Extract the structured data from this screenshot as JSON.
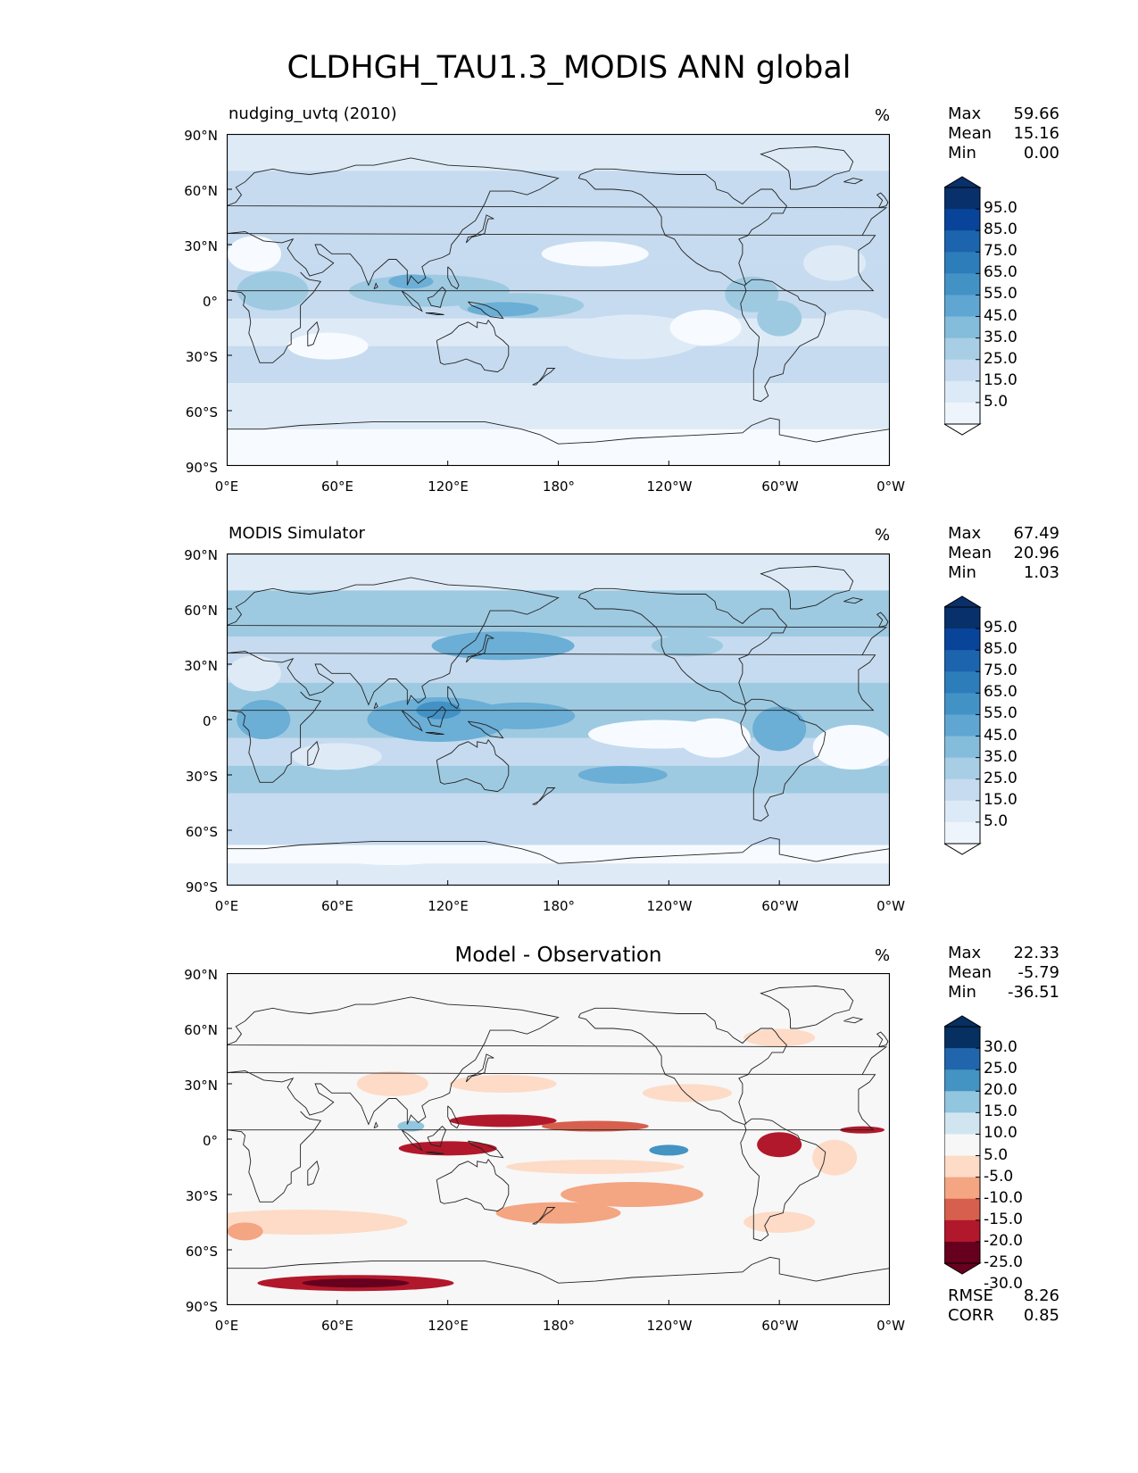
{
  "title": "CLDHGH_TAU1.3_MODIS ANN global",
  "y_ticks": [
    "90°N",
    "60°N",
    "30°N",
    "0°",
    "30°S",
    "60°S",
    "90°S"
  ],
  "x_ticks": [
    "0°E",
    "60°E",
    "120°E",
    "180°",
    "120°W",
    "60°W",
    "0°W"
  ],
  "chart_data": [
    {
      "type": "heatmap",
      "title": "nudging_uvtq (2010)",
      "units": "%",
      "stats": {
        "max": "59.66",
        "mean": "15.16",
        "min": "0.00"
      },
      "colorbar_levels": [
        "95.0",
        "85.0",
        "75.0",
        "65.0",
        "55.0",
        "45.0",
        "35.0",
        "25.0",
        "15.0",
        "5.0"
      ],
      "colormap": "Blues",
      "xlim": [
        0,
        360
      ],
      "ylim": [
        -90,
        90
      ],
      "features": [
        {
          "lon": 25,
          "lat": 8,
          "level": 3
        },
        {
          "lon": 100,
          "lat": 5,
          "level": 3
        },
        {
          "lon": 150,
          "lat": -5,
          "level": 3
        },
        {
          "lon": 285,
          "lat": 5,
          "level": 3
        },
        {
          "lon": 300,
          "lat": -10,
          "level": 2
        }
      ]
    },
    {
      "type": "heatmap",
      "title": "MODIS Simulator",
      "units": "%",
      "stats": {
        "max": "67.49",
        "mean": "20.96",
        "min": "1.03"
      },
      "colorbar_levels": [
        "95.0",
        "85.0",
        "75.0",
        "65.0",
        "55.0",
        "45.0",
        "35.0",
        "25.0",
        "15.0",
        "5.0"
      ],
      "colormap": "Blues",
      "xlim": [
        0,
        360
      ],
      "ylim": [
        -90,
        90
      ],
      "features": [
        {
          "lon": 110,
          "lat": 0,
          "level": 4
        },
        {
          "lon": 150,
          "lat": 5,
          "level": 4
        },
        {
          "lon": 20,
          "lat": 0,
          "level": 4
        },
        {
          "lon": 300,
          "lat": -5,
          "level": 4
        },
        {
          "lon": 215,
          "lat": -30,
          "level": 3
        }
      ]
    },
    {
      "type": "heatmap",
      "title": "Model - Observation",
      "units": "%",
      "stats": {
        "max": "22.33",
        "mean": "-5.79",
        "min": "-36.51"
      },
      "extra_stats": {
        "rmse": "8.26",
        "corr": "0.85"
      },
      "colorbar_levels": [
        "30.0",
        "25.0",
        "20.0",
        "15.0",
        "10.0",
        "5.0",
        "-5.0",
        "-10.0",
        "-15.0",
        "-20.0",
        "-25.0",
        "-30.0"
      ],
      "colormap": "RdBu_r",
      "xlim": [
        0,
        360
      ],
      "ylim": [
        -90,
        90
      ],
      "features": [
        {
          "lon": 160,
          "lat": 8,
          "value": -25
        },
        {
          "lon": 215,
          "lat": 7,
          "value": -20
        },
        {
          "lon": 120,
          "lat": -5,
          "value": -25
        },
        {
          "lon": 70,
          "lat": -78,
          "value": -30
        },
        {
          "lon": 300,
          "lat": -3,
          "value": -30
        },
        {
          "lon": 345,
          "lat": 5,
          "value": -25
        },
        {
          "lon": 240,
          "lat": -6,
          "value": 15
        }
      ]
    }
  ],
  "colors": {
    "blues": [
      "#f7fbff",
      "#deebf7",
      "#c6dbef",
      "#9ecae1",
      "#6baed6",
      "#4292c6",
      "#2171b5",
      "#08519c",
      "#08306b"
    ],
    "rdbu": [
      "#67001f",
      "#b2182b",
      "#d6604d",
      "#f4a582",
      "#fddbc7",
      "#f7f7f7",
      "#d1e5f0",
      "#92c5de",
      "#4393c3",
      "#2166ac",
      "#053061"
    ]
  }
}
